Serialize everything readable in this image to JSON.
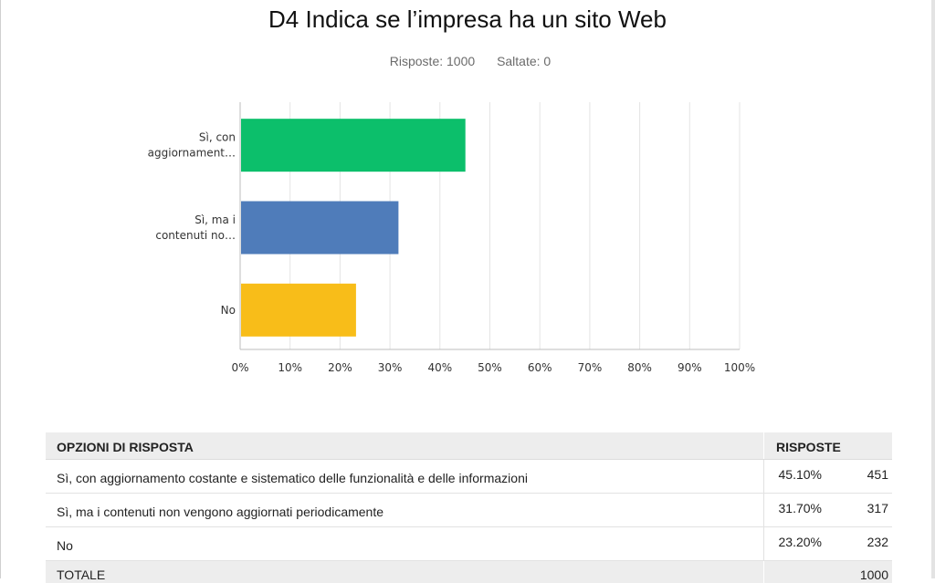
{
  "title": "D4 Indica se l’impresa ha un sito Web",
  "stats": {
    "answered": "Risposte: 1000",
    "skipped": "Saltate: 0"
  },
  "colors": {
    "bar1": "#0cbf6b",
    "bar2": "#4f7cba",
    "bar3": "#f8bd19",
    "grid": "#e4e4e4",
    "axis": "#bdbdbd"
  },
  "chart_data": {
    "type": "bar",
    "orientation": "horizontal",
    "categories": [
      [
        "Sì, con",
        "aggiornament…"
      ],
      [
        "Sì, ma i",
        "contenuti no…"
      ],
      [
        "No"
      ]
    ],
    "values": [
      45.1,
      31.7,
      23.2
    ],
    "xlim": [
      0,
      100
    ],
    "x_ticks": [
      "0%",
      "10%",
      "20%",
      "30%",
      "40%",
      "50%",
      "60%",
      "70%",
      "80%",
      "90%",
      "100%"
    ],
    "grid": true
  },
  "table": {
    "headers": {
      "options": "OPZIONI DI RISPOSTA",
      "responses": "RISPOSTE"
    },
    "rows": [
      {
        "option": "Sì, con aggiornamento costante e sistematico delle funzionalità e delle informazioni",
        "percent": "45.10%",
        "count": "451"
      },
      {
        "option": "Sì, ma i contenuti non vengono aggiornati periodicamente",
        "percent": "31.70%",
        "count": "317"
      },
      {
        "option": "No",
        "percent": "23.20%",
        "count": "232"
      }
    ],
    "total": {
      "label": "TOTALE",
      "count": "1000"
    }
  }
}
